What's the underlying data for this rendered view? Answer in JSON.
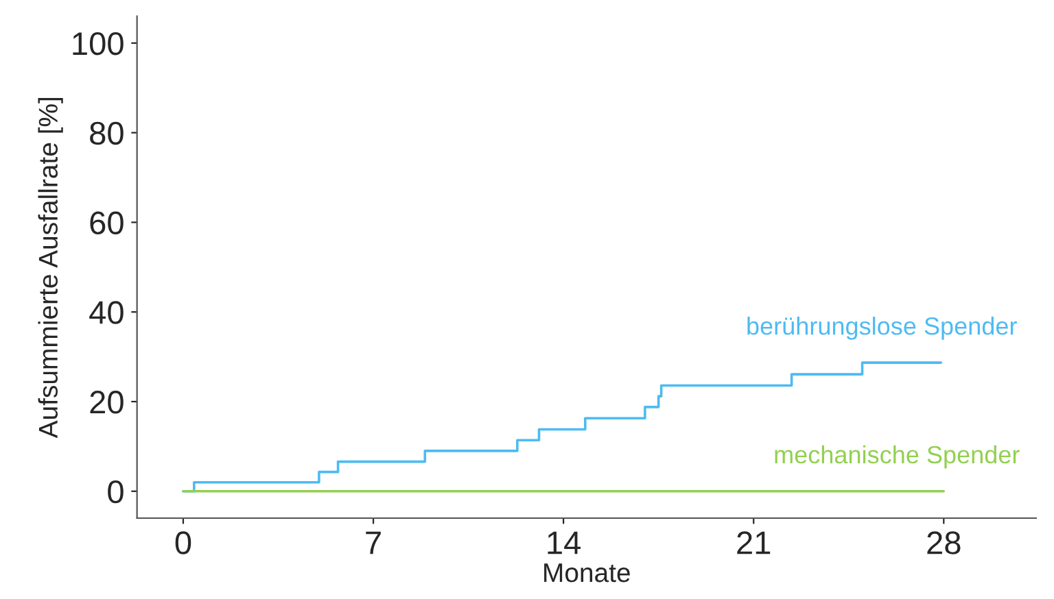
{
  "chart_data": {
    "type": "step",
    "xlabel": "Monate",
    "ylabel": "Aufsummierte Ausfallrate [%]",
    "series": [
      {
        "name": "berührungslose Spender",
        "color": "#4dbbf2",
        "x": [
          0,
          0.4,
          5.0,
          5.7,
          8.9,
          12.3,
          13.1,
          14.8,
          17.0,
          17.5,
          17.6,
          22.4,
          25.0,
          27.9
        ],
        "values": [
          0,
          2.0,
          4.3,
          6.6,
          9.0,
          11.4,
          13.8,
          16.3,
          18.8,
          21.2,
          23.6,
          26.1,
          28.7,
          28.7
        ]
      },
      {
        "name": "mechanische Spender",
        "color": "#92d050",
        "x": [
          0,
          28
        ],
        "values": [
          0,
          0
        ]
      }
    ],
    "xlim": [
      -1.7,
      31.4
    ],
    "ylim": [
      -6,
      106
    ],
    "xticks": [
      0,
      7,
      14,
      21,
      28
    ],
    "yticks": [
      0,
      20,
      40,
      60,
      80,
      100
    ],
    "grid": false,
    "legend": false
  }
}
